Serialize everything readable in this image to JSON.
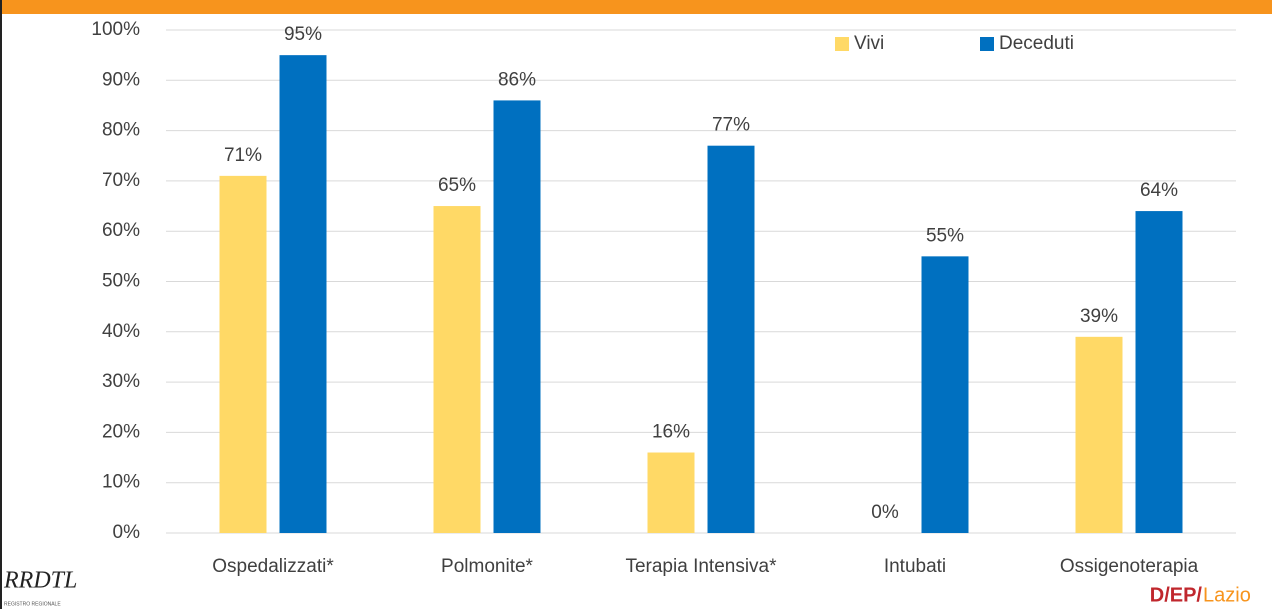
{
  "chart_data": {
    "type": "bar",
    "categories": [
      "Ospedalizzati*",
      "Polmonite*",
      "Terapia Intensiva*",
      "Intubati",
      "Ossigenoterapia"
    ],
    "series": [
      {
        "name": "Vivi",
        "color": "#ffd966",
        "values": [
          71,
          65,
          16,
          0,
          39
        ],
        "value_labels": [
          "71%",
          "65%",
          "16%",
          "0%",
          "39%"
        ]
      },
      {
        "name": "Deceduti",
        "color": "#0070c0",
        "values": [
          95,
          86,
          77,
          55,
          64
        ],
        "value_labels": [
          "95%",
          "86%",
          "77%",
          "55%",
          "64%"
        ]
      }
    ],
    "ylim": [
      0,
      100
    ],
    "yticks": [
      {
        "value": 0,
        "label": "0%"
      },
      {
        "value": 10,
        "label": "10%"
      },
      {
        "value": 20,
        "label": "20%"
      },
      {
        "value": 30,
        "label": "30%"
      },
      {
        "value": 40,
        "label": "40%"
      },
      {
        "value": 50,
        "label": "50%"
      },
      {
        "value": 60,
        "label": "60%"
      },
      {
        "value": 70,
        "label": "70%"
      },
      {
        "value": 80,
        "label": "80%"
      },
      {
        "value": 90,
        "label": "90%"
      },
      {
        "value": 100,
        "label": "100%"
      }
    ],
    "grid": true,
    "legend_position": "top-right"
  },
  "logos": {
    "left": "RRDTL",
    "left_sub": "REGISTRO REGIONALE",
    "right_mark": "D/EP/",
    "right_name": "Lazio"
  }
}
